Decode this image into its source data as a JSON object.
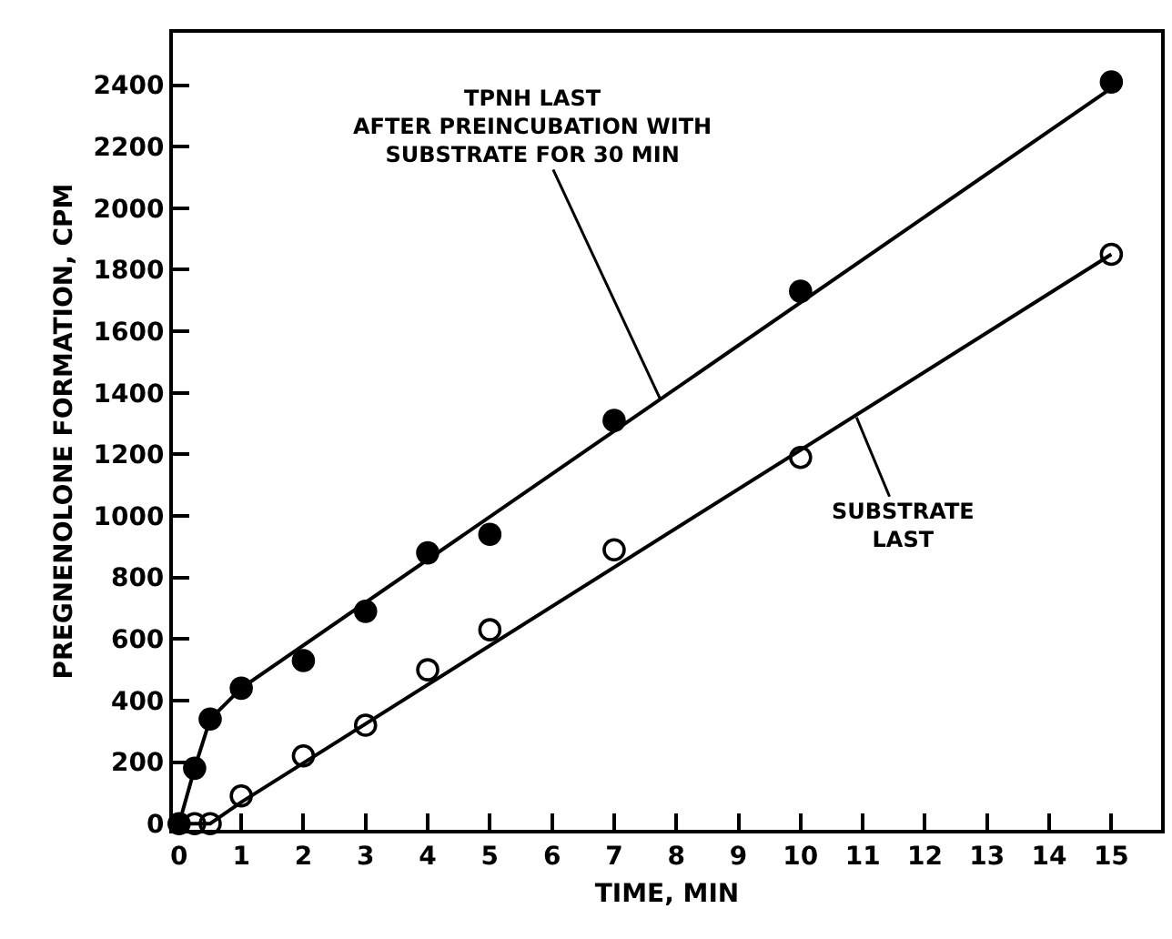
{
  "chart_data": {
    "type": "scatter",
    "xlabel": "TIME, MIN",
    "ylabel": "PREGNENOLONE FORMATION, CPM",
    "xlim": [
      -0.1,
      15.8
    ],
    "xticks": [
      0,
      1,
      2,
      3,
      4,
      5,
      6,
      7,
      8,
      9,
      10,
      11,
      12,
      13,
      14,
      15
    ],
    "ylim": [
      -20,
      2570
    ],
    "yticks": [
      0,
      200,
      400,
      600,
      800,
      1000,
      1200,
      1400,
      1600,
      1800,
      2000,
      2200,
      2400
    ],
    "marker": "circle",
    "series": [
      {
        "color": "#000000",
        "x": [
          0,
          0.25,
          0.5,
          1,
          2,
          3,
          4,
          5,
          7,
          10,
          15
        ],
        "values": [
          0,
          180,
          340,
          440,
          530,
          690,
          880,
          940,
          1310,
          1730,
          2410
        ]
      },
      {
        "color": "#000000",
        "marker": "circle-open",
        "x": [
          0.25,
          0.5,
          1,
          2,
          3,
          4,
          5,
          7,
          10,
          15
        ],
        "values": [
          0,
          0,
          90,
          220,
          320,
          500,
          630,
          890,
          1190,
          1850
        ]
      },
      {
        "type": "line",
        "color": "#000000",
        "marker": "none",
        "x": [
          0,
          0.25,
          0.5,
          1,
          15
        ],
        "values": [
          0,
          180,
          340,
          440,
          2390
        ]
      },
      {
        "type": "line",
        "color": "#000000",
        "marker": "none",
        "x": [
          0,
          0.5,
          1,
          15
        ],
        "values": [
          0,
          0,
          70,
          1850
        ]
      }
    ],
    "annotations": [
      {
        "text": "TPNH LAST\nAFTER PREINCUBATION WITH\nSUBSTRATE FOR 30 MIN",
        "x": 7.74,
        "y": 1380
      },
      {
        "text": "SUBSTRATE\nLAST",
        "x": 10.9,
        "y": 1320
      }
    ]
  }
}
